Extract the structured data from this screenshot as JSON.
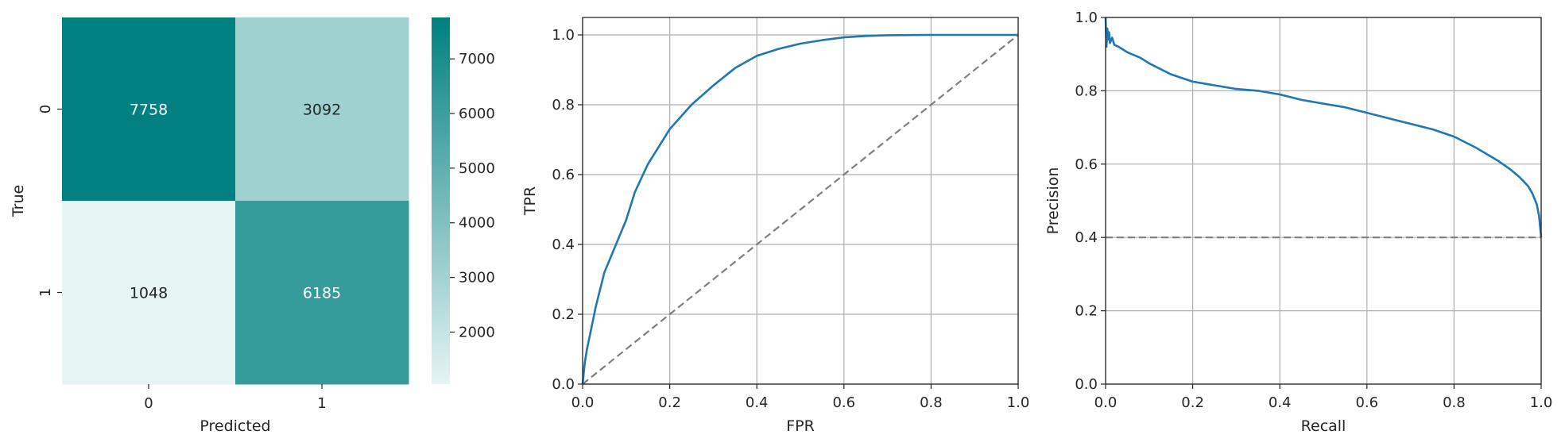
{
  "chart_data": [
    {
      "type": "heatmap",
      "xlabel": "Predicted",
      "ylabel": "True",
      "x_categories": [
        "0",
        "1"
      ],
      "y_categories": [
        "0",
        "1"
      ],
      "values": [
        [
          7758,
          3092
        ],
        [
          1048,
          6185
        ]
      ],
      "colorbar": {
        "min": 1048,
        "max": 7758,
        "ticks": [
          2000,
          3000,
          4000,
          5000,
          6000,
          7000
        ]
      },
      "colors": {
        "low": "#e6f4f4",
        "high": "#008080"
      }
    },
    {
      "type": "line",
      "xlabel": "FPR",
      "ylabel": "TPR",
      "xlim": [
        0,
        1.0
      ],
      "ylim": [
        0,
        1.05
      ],
      "xticks": [
        "0.0",
        "0.2",
        "0.4",
        "0.6",
        "0.8",
        "1.0"
      ],
      "yticks": [
        "0.0",
        "0.2",
        "0.4",
        "0.6",
        "0.8",
        "1.0"
      ],
      "grid": true,
      "series": [
        {
          "color": "#1f77b4",
          "style": "solid",
          "x": [
            0,
            0.005,
            0.01,
            0.02,
            0.03,
            0.05,
            0.07,
            0.1,
            0.12,
            0.15,
            0.2,
            0.25,
            0.3,
            0.35,
            0.4,
            0.45,
            0.5,
            0.55,
            0.6,
            0.65,
            0.7,
            0.8,
            0.9,
            1.0
          ],
          "y": [
            0,
            0.06,
            0.1,
            0.16,
            0.22,
            0.32,
            0.38,
            0.47,
            0.55,
            0.63,
            0.73,
            0.8,
            0.855,
            0.905,
            0.94,
            0.96,
            0.975,
            0.985,
            0.993,
            0.997,
            0.999,
            1.0,
            1.0,
            1.0
          ]
        },
        {
          "color": "#7f7f7f",
          "style": "dashed",
          "x": [
            0,
            1
          ],
          "y": [
            0,
            1
          ]
        }
      ]
    },
    {
      "type": "line",
      "xlabel": "Recall",
      "ylabel": "Precision",
      "xlim": [
        0,
        1.0
      ],
      "ylim": [
        0,
        1.0
      ],
      "xticks": [
        "0.0",
        "0.2",
        "0.4",
        "0.6",
        "0.8",
        "1.0"
      ],
      "yticks": [
        "0.0",
        "0.2",
        "0.4",
        "0.6",
        "0.8",
        "1.0"
      ],
      "grid": true,
      "series": [
        {
          "color": "#1f77b4",
          "style": "solid",
          "x": [
            0,
            0.002,
            0.004,
            0.006,
            0.008,
            0.01,
            0.015,
            0.02,
            0.03,
            0.05,
            0.08,
            0.1,
            0.15,
            0.2,
            0.25,
            0.3,
            0.35,
            0.4,
            0.45,
            0.5,
            0.55,
            0.6,
            0.65,
            0.7,
            0.75,
            0.8,
            0.85,
            0.9,
            0.93,
            0.95,
            0.97,
            0.98,
            0.99,
            0.995,
            1.0
          ],
          "y": [
            1.0,
            0.92,
            0.97,
            0.94,
            0.96,
            0.93,
            0.945,
            0.925,
            0.92,
            0.905,
            0.89,
            0.875,
            0.845,
            0.825,
            0.815,
            0.805,
            0.8,
            0.79,
            0.775,
            0.765,
            0.755,
            0.74,
            0.725,
            0.71,
            0.695,
            0.675,
            0.645,
            0.61,
            0.585,
            0.565,
            0.54,
            0.52,
            0.49,
            0.46,
            0.4
          ]
        },
        {
          "color": "#7f7f7f",
          "style": "dashed",
          "x": [
            0,
            1
          ],
          "y": [
            0.4,
            0.4
          ]
        }
      ]
    }
  ]
}
